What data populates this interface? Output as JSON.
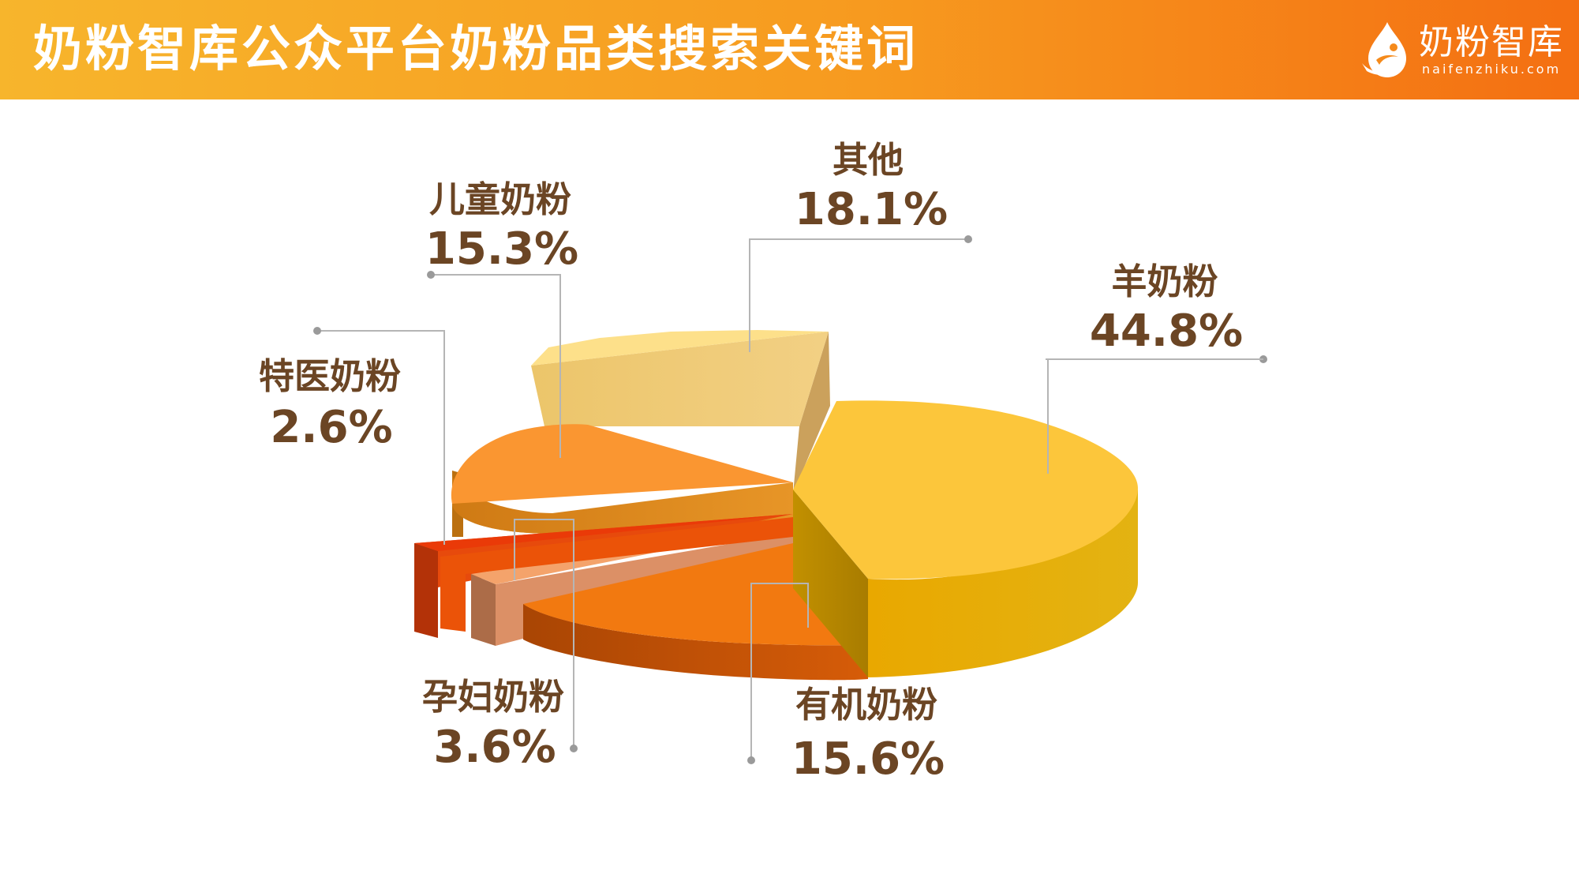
{
  "header": {
    "title": "奶粉智库公众平台奶粉品类搜索关键词",
    "logo_name": "奶粉智库",
    "logo_url": "naifenzhiku.com"
  },
  "colors": {
    "header_gradient": [
      "#f7b52c",
      "#f46f12"
    ],
    "label_text": "#6b4524",
    "leader_line": "#b5b5b5"
  },
  "chart_data": {
    "type": "pie",
    "style": "3d-exploded",
    "slices": [
      {
        "name": "羊奶粉",
        "value": 44.8,
        "label": "44.8%",
        "color": "#fcc63b"
      },
      {
        "name": "有机奶粉",
        "value": 15.6,
        "label": "15.6%",
        "color": "#f27910"
      },
      {
        "name": "孕妇奶粉",
        "value": 3.6,
        "label": "3.6%",
        "color": "#f4a36b"
      },
      {
        "name": "特医奶粉",
        "value": 2.6,
        "label": "2.6%",
        "color": "#ea3a08"
      },
      {
        "name": "儿童奶粉",
        "value": 15.3,
        "label": "15.3%",
        "color": "#fa9631"
      },
      {
        "name": "其他",
        "value": 18.1,
        "label": "18.1%",
        "color": "#fde08a"
      }
    ]
  }
}
